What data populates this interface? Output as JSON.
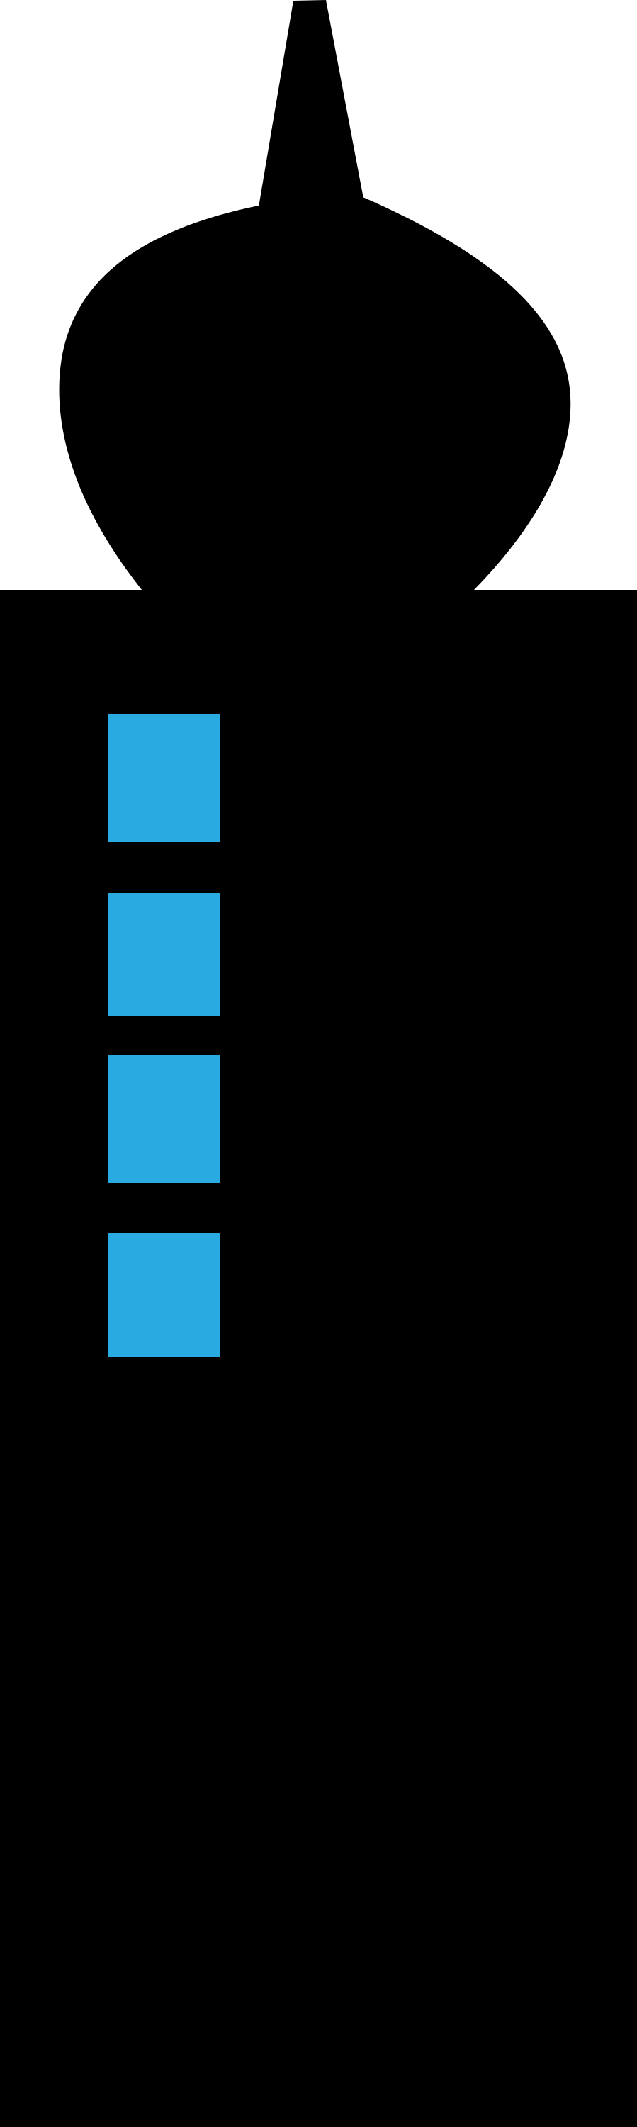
{
  "illustration": {
    "subject": "tower-silhouette",
    "colors": {
      "background": "#ffffff",
      "silhouette": "#000000",
      "window": "#29abe2"
    },
    "window_count": 4
  }
}
